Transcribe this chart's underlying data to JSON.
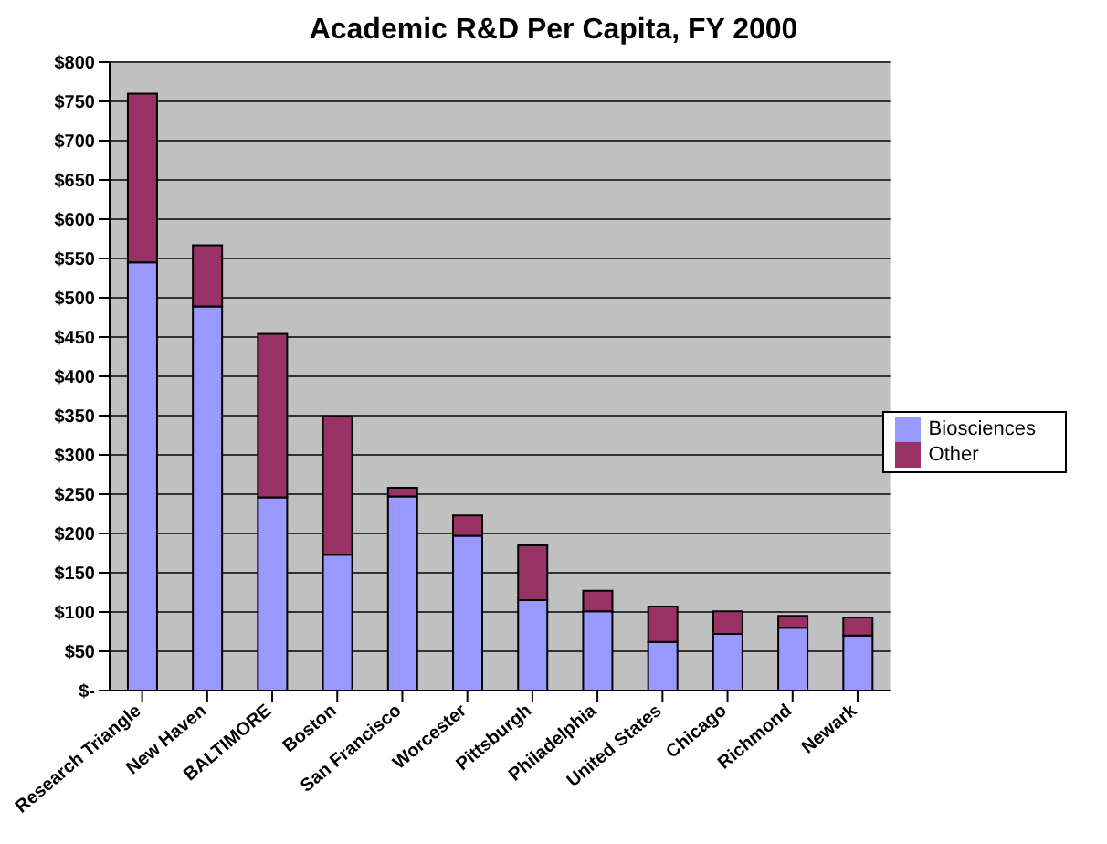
{
  "chart_data": {
    "type": "bar",
    "title": "Academic R&D Per Capita, FY 2000",
    "stacked": true,
    "categories": [
      "Research Triangle",
      "New Haven",
      "BALTIMORE",
      "Boston",
      "San Francisco",
      "Worcester",
      "Pittsburgh",
      "Philadelphia",
      "United States",
      "Chicago",
      "Richmond",
      "Newark"
    ],
    "series": [
      {
        "name": "Biosciences",
        "color": "#9999ff",
        "values": [
          545,
          489,
          246,
          173,
          247,
          197,
          115,
          101,
          62,
          72,
          80,
          70
        ]
      },
      {
        "name": "Other",
        "color": "#993366",
        "values": [
          215,
          78,
          208,
          176,
          11,
          26,
          70,
          26,
          45,
          29,
          15,
          23
        ]
      }
    ],
    "ylim": [
      0,
      800
    ],
    "yticks": [
      {
        "value": 0,
        "label": "$-"
      },
      {
        "value": 50,
        "label": "$50"
      },
      {
        "value": 100,
        "label": "$100"
      },
      {
        "value": 150,
        "label": "$150"
      },
      {
        "value": 200,
        "label": "$200"
      },
      {
        "value": 250,
        "label": "$250"
      },
      {
        "value": 300,
        "label": "$300"
      },
      {
        "value": 350,
        "label": "$350"
      },
      {
        "value": 400,
        "label": "$400"
      },
      {
        "value": 450,
        "label": "$450"
      },
      {
        "value": 500,
        "label": "$500"
      },
      {
        "value": 550,
        "label": "$550"
      },
      {
        "value": 600,
        "label": "$600"
      },
      {
        "value": 650,
        "label": "$650"
      },
      {
        "value": 700,
        "label": "$700"
      },
      {
        "value": 750,
        "label": "$750"
      },
      {
        "value": 800,
        "label": "$800"
      }
    ],
    "grid": "y",
    "legend": "right"
  }
}
